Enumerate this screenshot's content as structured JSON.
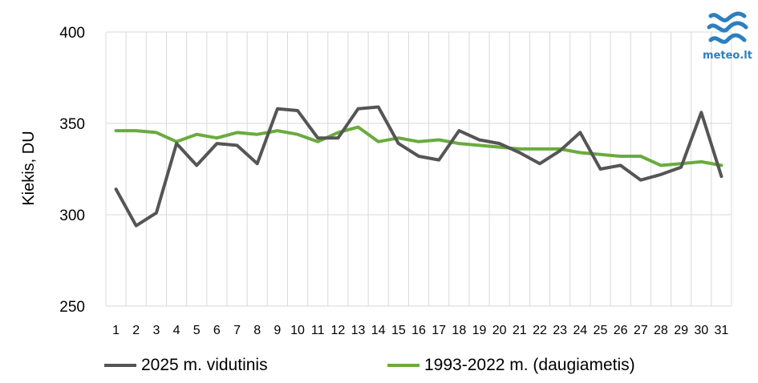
{
  "colors": {
    "series1": "#555555",
    "series2": "#6aab3f",
    "grid": "#d9d9d9",
    "logo": "#2c7fc0"
  },
  "logo": {
    "text": "meteo.lt",
    "icon": "meteo-wave-icon"
  },
  "chart_data": {
    "type": "line",
    "title": "",
    "xlabel": "",
    "ylabel": "Kiekis, DU",
    "ylim": [
      250,
      400
    ],
    "yticks": [
      250,
      300,
      350,
      400
    ],
    "grid": true,
    "legend_position": "bottom",
    "x": [
      1,
      2,
      3,
      4,
      5,
      6,
      7,
      8,
      9,
      10,
      11,
      12,
      13,
      14,
      15,
      16,
      17,
      18,
      19,
      20,
      21,
      22,
      23,
      24,
      25,
      26,
      27,
      28,
      29,
      30,
      31
    ],
    "series": [
      {
        "name": "2025 m. vidutinis",
        "color": "#555555",
        "values": [
          314,
          294,
          301,
          339,
          327,
          339,
          338,
          328,
          358,
          357,
          342,
          342,
          358,
          359,
          339,
          332,
          330,
          346,
          341,
          339,
          334,
          328,
          335,
          345,
          325,
          327,
          319,
          322,
          326,
          356,
          321
        ]
      },
      {
        "name": "1993-2022 m. (daugiametis)",
        "color": "#6aab3f",
        "values": [
          346,
          346,
          345,
          340,
          344,
          342,
          345,
          344,
          346,
          344,
          340,
          345,
          348,
          340,
          342,
          340,
          341,
          339,
          338,
          337,
          336,
          336,
          336,
          334,
          333,
          332,
          332,
          327,
          328,
          329,
          327
        ]
      }
    ]
  }
}
